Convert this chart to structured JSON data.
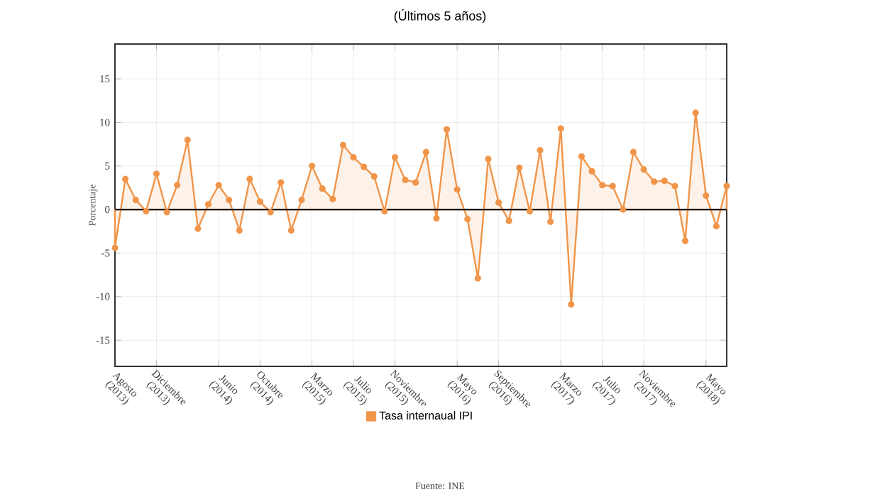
{
  "chart_data": {
    "type": "area",
    "title": "(Últimos 5 años)",
    "ylabel": "Porcentaje",
    "annotations": [
      "Fuente: INE"
    ],
    "x": [
      "2013-08",
      "2013-09",
      "2013-10",
      "2013-11",
      "2013-12",
      "2014-01",
      "2014-02",
      "2014-03",
      "2014-04",
      "2014-05",
      "2014-06",
      "2014-07",
      "2014-08",
      "2014-09",
      "2014-10",
      "2014-11",
      "2014-12",
      "2015-01",
      "2015-02",
      "2015-03",
      "2015-04",
      "2015-05",
      "2015-06",
      "2015-07",
      "2015-08",
      "2015-09",
      "2015-10",
      "2015-11",
      "2015-12",
      "2016-01",
      "2016-02",
      "2016-03",
      "2016-04",
      "2016-05",
      "2016-06",
      "2016-07",
      "2016-08",
      "2016-09",
      "2016-10",
      "2016-11",
      "2016-12",
      "2017-01",
      "2017-02",
      "2017-03",
      "2017-04",
      "2017-05",
      "2017-06",
      "2017-07",
      "2017-08",
      "2017-09",
      "2017-10",
      "2017-11",
      "2017-12",
      "2018-01",
      "2018-02",
      "2018-03",
      "2018-04",
      "2018-05",
      "2018-06",
      "2018-07"
    ],
    "xlim": [
      "2013-08",
      "2018-07"
    ],
    "xticks": [
      {
        "value": "2013-08",
        "label": "Agosto (2013)"
      },
      {
        "value": "2013-12",
        "label": "Diciembre (2013)"
      },
      {
        "value": "2014-06",
        "label": "Junio (2014)"
      },
      {
        "value": "2014-10",
        "label": "Octubre (2014)"
      },
      {
        "value": "2015-03",
        "label": "Marzo (2015)"
      },
      {
        "value": "2015-07",
        "label": "Julio (2015)"
      },
      {
        "value": "2015-11",
        "label": "Noviembre (2015)"
      },
      {
        "value": "2016-05",
        "label": "Mayo (2016)"
      },
      {
        "value": "2016-09",
        "label": "Septiembre (2016)"
      },
      {
        "value": "2017-03",
        "label": "Marzo (2017)"
      },
      {
        "value": "2017-07",
        "label": "Julio (2017)"
      },
      {
        "value": "2017-11",
        "label": "Noviembre (2017)"
      },
      {
        "value": "2018-05",
        "label": "Mayo (2018)"
      }
    ],
    "series": [
      {
        "name": "Tasa internaual IPI",
        "color": "#f0954a",
        "values": [
          -4.4,
          3.5,
          1.1,
          -0.2,
          4.1,
          -0.3,
          2.8,
          8.0,
          -2.2,
          0.6,
          2.8,
          1.1,
          -2.4,
          3.5,
          0.9,
          -0.3,
          3.1,
          -2.4,
          1.1,
          5.0,
          2.4,
          1.2,
          7.4,
          6.0,
          4.9,
          3.8,
          -0.2,
          6.0,
          3.4,
          3.1,
          6.6,
          -1.0,
          9.2,
          2.3,
          -1.1,
          -7.9,
          5.8,
          0.8,
          -1.3,
          4.8,
          -0.2,
          6.8,
          -1.4,
          9.3,
          -10.9,
          6.1,
          4.4,
          2.8,
          2.7,
          0.0,
          6.6,
          4.6,
          3.2,
          3.3,
          2.7,
          -3.6,
          11.1,
          1.6,
          -1.9,
          2.7
        ]
      }
    ],
    "ylim": [
      -18,
      19
    ],
    "yticks": [
      -15,
      -10,
      -5,
      0,
      5,
      10,
      15
    ],
    "ref_lines": [
      {
        "axis": "y",
        "value": 0,
        "color": "#000000"
      }
    ],
    "grid": true,
    "marker": "circle",
    "legend": "bottom"
  }
}
